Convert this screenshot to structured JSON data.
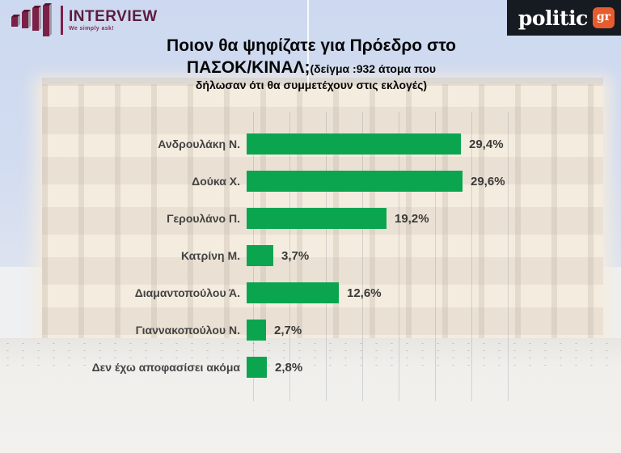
{
  "header": {
    "interview_logo": {
      "name": "INTERVIEW",
      "tagline": "We simply ask!"
    },
    "politic_logo": {
      "name": "politic",
      "tld": "gr"
    }
  },
  "title": {
    "line1": "Ποιον θα ψηφίζατε για Πρόεδρο στο",
    "line2_main": "ΠΑΣΟΚ/ΚΙΝΑΛ;",
    "line2_note": "(δείγμα :932 άτομα που",
    "line3_note": "δήλωσαν ότι θα συμμετέχουν στις εκλογές)"
  },
  "chart_data": {
    "type": "bar",
    "orientation": "horizontal",
    "title": "Ποιον θα ψηφίζατε για Πρόεδρο στο ΠΑΣΟΚ/ΚΙΝΑΛ;",
    "subtitle": "(δείγμα :932 άτομα που δήλωσαν ότι θα συμμετέχουν στις εκλογές)",
    "sample_size": 932,
    "categories": [
      "Ανδρουλάκη Ν.",
      "Δούκα Χ.",
      "Γερουλάνο Π.",
      "Κατρίνη Μ.",
      "Διαμαντοπούλου Ά.",
      "Γιαννακοπούλου Ν.",
      "Δεν έχω αποφασίσει ακόμα"
    ],
    "values": [
      29.4,
      29.6,
      19.2,
      3.7,
      12.6,
      2.7,
      2.8
    ],
    "value_labels": [
      "29,4%",
      "29,6%",
      "19,2%",
      "3,7%",
      "12,6%",
      "2,7%",
      "2,8%"
    ],
    "xlim": [
      0,
      35
    ],
    "gridline_interval": 5,
    "grid": "vertical-faint",
    "legend": "none",
    "bar_color": "#0ba550"
  },
  "colors": {
    "bar_green": "#0ba550",
    "interview_maroon": "#7d2048",
    "interview_text": "#5c1c3e",
    "politic_black": "#161a21",
    "politic_orange": "#e65c2e",
    "label_text": "#434343",
    "title_text": "#050505"
  }
}
